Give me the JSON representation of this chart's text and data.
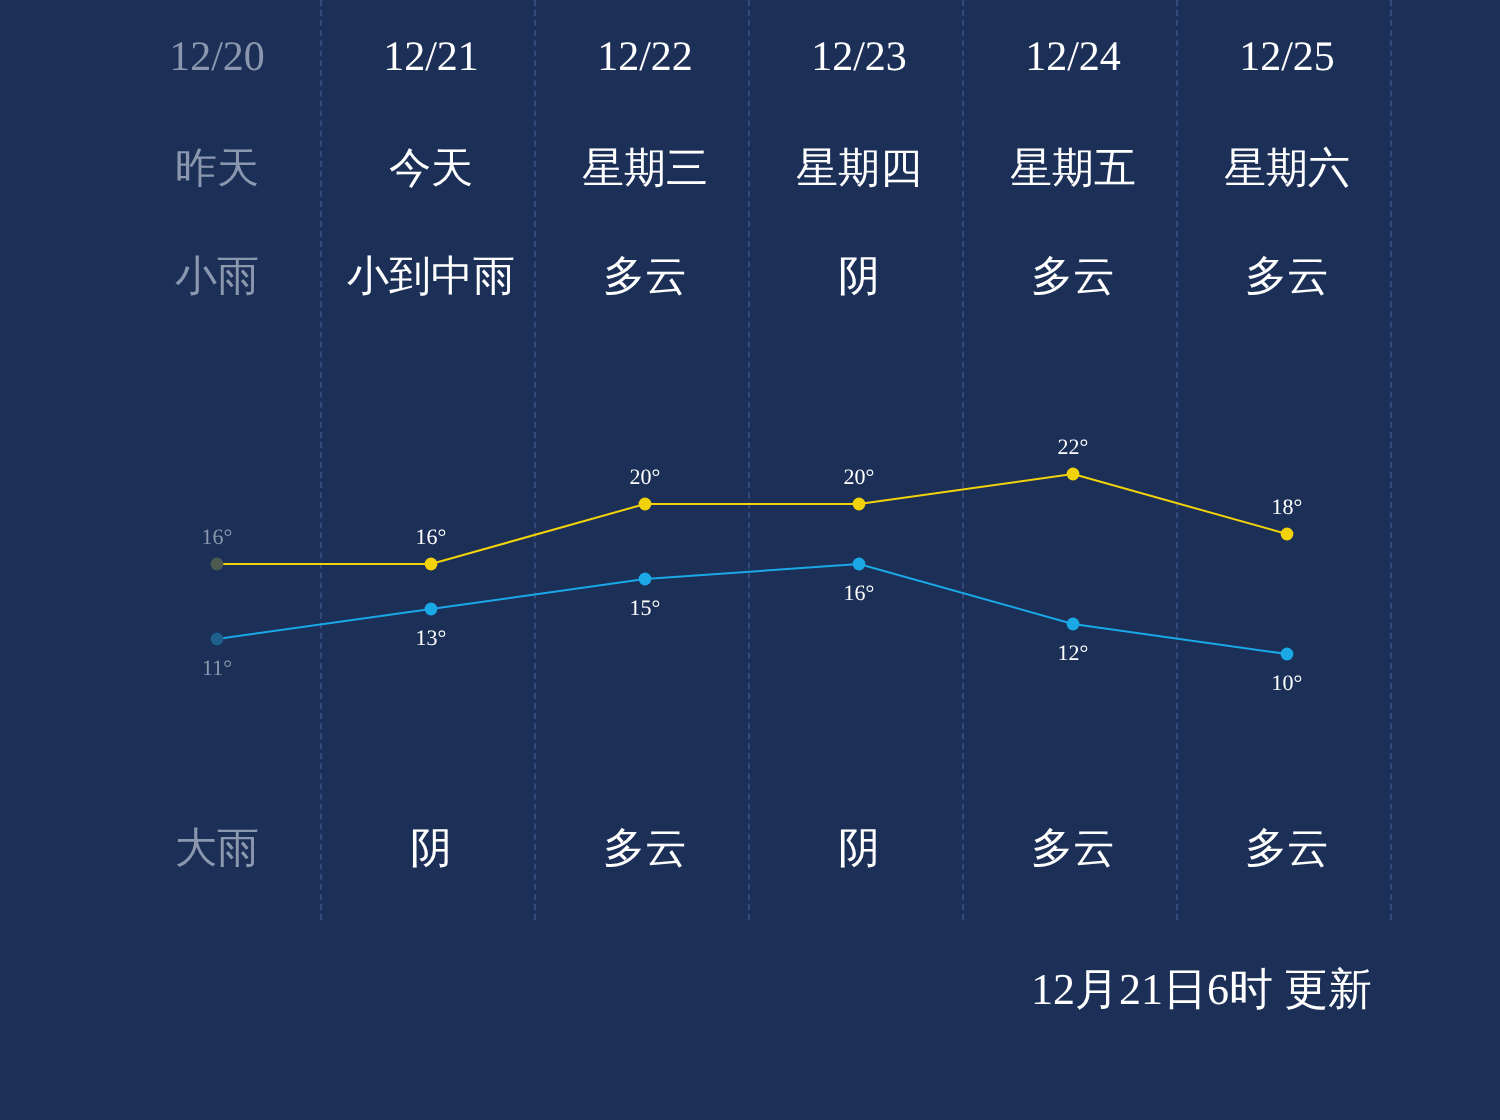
{
  "chart_data": {
    "type": "line",
    "categories": [
      "12/20",
      "12/21",
      "12/22",
      "12/23",
      "12/24",
      "12/25"
    ],
    "series": [
      {
        "color": "#f2d20a",
        "colors": [
          "#4c5a52",
          "#f2d20a",
          "#f2d20a",
          "#f2d20a",
          "#f2d20a",
          "#f2d20a"
        ],
        "values": [
          16,
          16,
          20,
          20,
          22,
          18
        ],
        "value_labels": [
          "16°",
          "16°",
          "20°",
          "20°",
          "22°",
          "18°"
        ]
      },
      {
        "color": "#1ba8e6",
        "colors": [
          "#1f5f8c",
          "#1ba8e6",
          "#1ba8e6",
          "#1ba8e6",
          "#1ba8e6",
          "#1ba8e6"
        ],
        "values": [
          11,
          13,
          15,
          16,
          12,
          10
        ],
        "value_labels": [
          "11°",
          "13°",
          "15°",
          "16°",
          "12°",
          "10°"
        ]
      }
    ],
    "annotations": [
      "昨天",
      "今天",
      "星期三",
      "星期四",
      "星期五",
      "星期六",
      "小雨",
      "小到中雨",
      "多云",
      "阴",
      "多云",
      "多云",
      "大雨",
      "阴",
      "多云",
      "阴",
      "多云",
      "多云",
      "12月21日6时 更新"
    ],
    "marker": "circle",
    "grid": "x"
  }
}
